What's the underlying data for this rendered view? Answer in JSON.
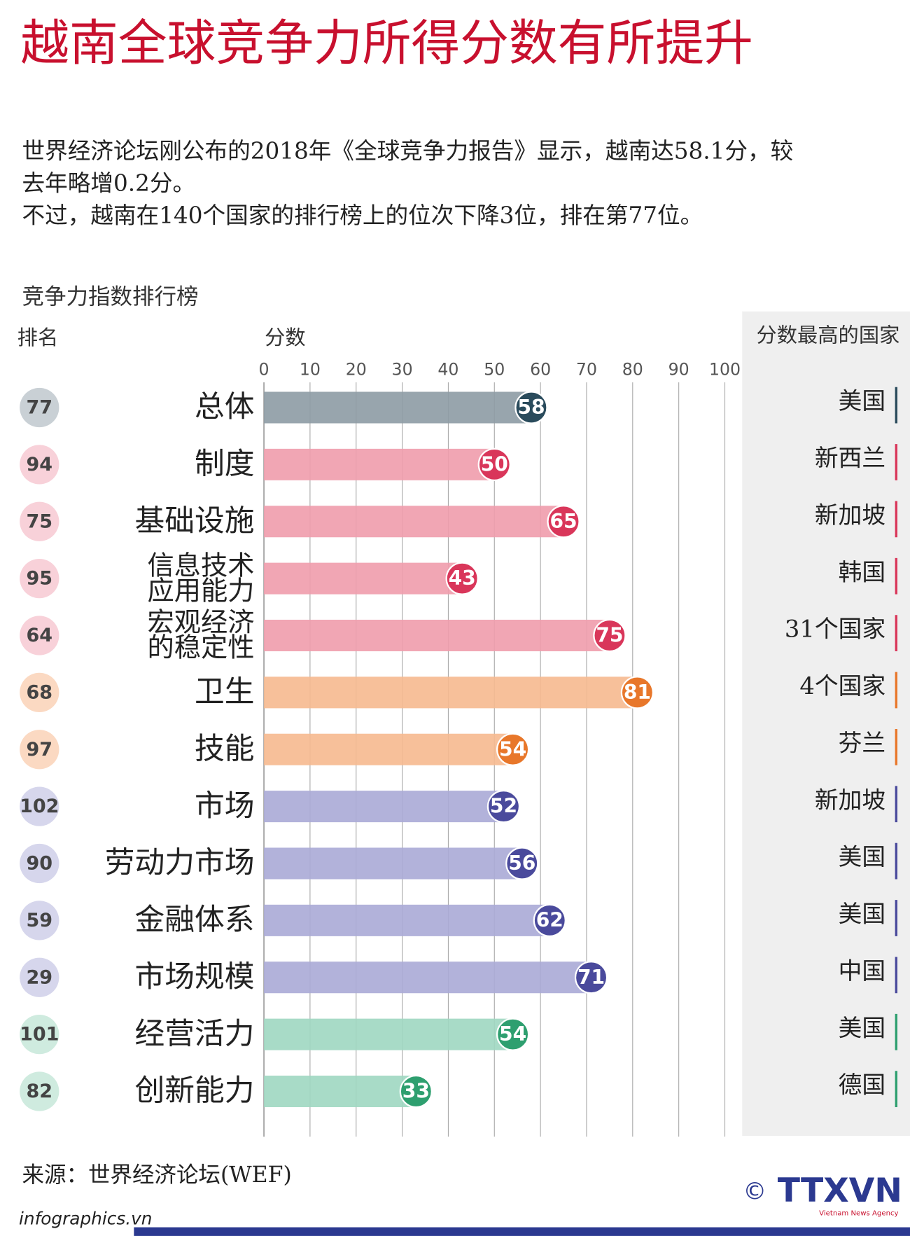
{
  "chart_data": {
    "type": "bar",
    "title": "越南全球竞争力所得分数有所提升",
    "intro": [
      "世界经济论坛刚公布的2018年《全球竞争力报告》显示，越南达58.1分，较",
      "去年略增0.2分。",
      "不过，越南在140个国家的排行榜上的位次下降3位，排在第77位。"
    ],
    "subtitle": "竞争力指数排行榜",
    "rank_header": "排名",
    "score_header": "分数",
    "leader_header": "分数最高的国家",
    "categories": [
      [
        "总体"
      ],
      [
        "制度"
      ],
      [
        "基础设施"
      ],
      [
        "信息技术",
        "应用能力"
      ],
      [
        "宏观经济",
        "的稳定性"
      ],
      [
        "卫生"
      ],
      [
        "技能"
      ],
      [
        "市场"
      ],
      [
        "劳动力市场"
      ],
      [
        "金融体系"
      ],
      [
        "市场规模"
      ],
      [
        "经营活力"
      ],
      [
        "创新能力"
      ]
    ],
    "values": [
      58,
      50,
      65,
      43,
      75,
      81,
      54,
      52,
      56,
      62,
      71,
      54,
      33
    ],
    "ranks": [
      77,
      94,
      75,
      95,
      64,
      68,
      97,
      102,
      90,
      59,
      29,
      101,
      82
    ],
    "leaders": [
      "美国",
      "新西兰",
      "新加坡",
      "韩国",
      "31个国家",
      "4个国家",
      "芬兰",
      "新加坡",
      "美国",
      "美国",
      "中国",
      "美国",
      "德国"
    ],
    "bar_colors": [
      "#8d9ba4",
      "#ef9cac",
      "#ef9cac",
      "#ef9cac",
      "#ef9cac",
      "#f6b98f",
      "#f6b98f",
      "#aaaad6",
      "#aaaad6",
      "#aaaad6",
      "#aaaad6",
      "#9fd7c1",
      "#9fd7c1"
    ],
    "label_colors": [
      "#2a4b5c",
      "#d9365a",
      "#d9365a",
      "#d9365a",
      "#d9365a",
      "#e8772a",
      "#e8772a",
      "#4a4a9c",
      "#4a4a9c",
      "#4a4a9c",
      "#4a4a9c",
      "#2e9f6f",
      "#2e9f6f"
    ],
    "rank_colors": [
      "#c9d0d5",
      "#f8d1d9",
      "#f8d1d9",
      "#f8d1d9",
      "#f8d1d9",
      "#fbd9c2",
      "#fbd9c2",
      "#d6d6ec",
      "#d6d6ec",
      "#d6d6ec",
      "#d6d6ec",
      "#cfebdf",
      "#cfebdf"
    ],
    "xlim": [
      0,
      100
    ],
    "xticks": [
      0,
      10,
      20,
      30,
      40,
      50,
      60,
      70,
      80,
      90,
      100
    ],
    "grid": true,
    "source": "来源：世界经济论坛(WEF)",
    "website": "infographics.vn",
    "logo": "TTXVN",
    "logo_sub": "Vietnam News Agency",
    "copyright": "©"
  }
}
